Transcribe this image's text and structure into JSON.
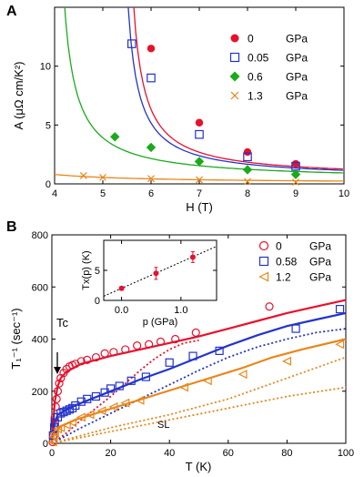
{
  "chart_data": [
    {
      "panel": "A",
      "type": "scatter",
      "xlabel": "H (T)",
      "ylabel": "A (μΩ cm/K²)",
      "xlim": [
        4,
        10
      ],
      "ylim": [
        0,
        15
      ],
      "xticks": [
        "4",
        "5",
        "6",
        "7",
        "8",
        "9",
        "10"
      ],
      "yticks": [
        "0",
        "5",
        "10"
      ],
      "series": [
        {
          "name": "0",
          "unit": "GPa",
          "color": "#e8112d",
          "marker": "filled-circle",
          "x": [
            6,
            7,
            8,
            9
          ],
          "y": [
            11.5,
            5.2,
            2.7,
            1.7
          ],
          "fit": {
            "Hc": 5.4,
            "a": 3.5,
            "b": 0.5
          }
        },
        {
          "name": "0.05",
          "unit": "GPa",
          "color": "#2233cc",
          "marker": "open-square",
          "x": [
            5.6,
            6,
            7,
            8,
            9
          ],
          "y": [
            11.9,
            9.0,
            4.2,
            2.3,
            1.5
          ],
          "fit": {
            "Hc": 5.3,
            "a": 3.3,
            "b": 0.45
          }
        },
        {
          "name": "0.6",
          "unit": "GPa",
          "color": "#1aaa1a",
          "marker": "filled-diamond",
          "x": [
            5.25,
            6,
            7,
            8,
            9
          ],
          "y": [
            4.0,
            3.1,
            1.9,
            1.2,
            0.8
          ],
          "fit": {
            "Hc": 3.95,
            "a": 3.8,
            "b": 0.3
          }
        },
        {
          "name": "1.3",
          "unit": "GPa",
          "color": "#e8861a",
          "marker": "x",
          "x": [
            4.6,
            5,
            6,
            7,
            8,
            9
          ],
          "y": [
            0.7,
            0.55,
            0.45,
            0.35,
            0.2,
            0.15
          ],
          "fit": {
            "Hc": 2.0,
            "a": 1.5,
            "b": 0.05
          }
        }
      ]
    },
    {
      "panel": "B",
      "type": "scatter",
      "xlabel": "T (K)",
      "ylabel": "T₁⁻¹ (sec⁻¹)",
      "xlim": [
        0,
        100
      ],
      "ylim": [
        0,
        800
      ],
      "xticks": [
        "0",
        "20",
        "40",
        "60",
        "80",
        "100"
      ],
      "yticks": [
        "0",
        "200",
        "400",
        "600",
        "800"
      ],
      "annotations": {
        "tc": "Tc",
        "sl": "SL"
      },
      "series": [
        {
          "name": "0",
          "unit": "GPa",
          "color": "#e8112d",
          "marker": "open-circle",
          "x": [
            0.3,
            0.5,
            0.8,
            1,
            1.3,
            1.6,
            2,
            2.5,
            3,
            4,
            5,
            6,
            7,
            8,
            10,
            12,
            15,
            18,
            21,
            25,
            29,
            33,
            37,
            42,
            49,
            74
          ],
          "y": [
            5,
            30,
            70,
            100,
            140,
            170,
            200,
            230,
            250,
            270,
            285,
            295,
            300,
            305,
            315,
            320,
            330,
            345,
            350,
            360,
            375,
            380,
            390,
            400,
            425,
            525
          ],
          "line": [
            [
              0,
              10
            ],
            [
              0.5,
              80
            ],
            [
              1,
              160
            ],
            [
              2,
              220
            ],
            [
              3,
              250
            ],
            [
              5,
              275
            ],
            [
              10,
              305
            ],
            [
              20,
              335
            ],
            [
              30,
              360
            ],
            [
              40,
              385
            ],
            [
              50,
              410
            ],
            [
              60,
              440
            ],
            [
              70,
              470
            ],
            [
              80,
              500
            ],
            [
              90,
              525
            ],
            [
              100,
              550
            ]
          ],
          "dotted": [
            [
              0,
              0
            ],
            [
              5,
              40
            ],
            [
              10,
              90
            ],
            [
              15,
              135
            ],
            [
              20,
              180
            ],
            [
              25,
              230
            ],
            [
              30,
              280
            ],
            [
              35,
              325
            ],
            [
              40,
              360
            ],
            [
              45,
              385
            ],
            [
              50,
              395
            ]
          ]
        },
        {
          "name": "0.58",
          "unit": "GPa",
          "color": "#2233cc",
          "marker": "open-square",
          "x": [
            0.4,
            0.8,
            1,
            2,
            3,
            4,
            5,
            6,
            7,
            8,
            10,
            12,
            15,
            18,
            20,
            23,
            27,
            32,
            40,
            48,
            57,
            83,
            98
          ],
          "y": [
            30,
            60,
            80,
            100,
            115,
            120,
            125,
            130,
            135,
            145,
            160,
            170,
            180,
            195,
            210,
            220,
            240,
            255,
            310,
            335,
            355,
            440,
            515
          ],
          "line": [
            [
              0,
              10
            ],
            [
              1,
              80
            ],
            [
              2,
              110
            ],
            [
              5,
              130
            ],
            [
              10,
              155
            ],
            [
              20,
              200
            ],
            [
              30,
              245
            ],
            [
              40,
              285
            ],
            [
              50,
              330
            ],
            [
              60,
              375
            ],
            [
              70,
              415
            ],
            [
              80,
              450
            ],
            [
              90,
              475
            ],
            [
              100,
              500
            ]
          ],
          "dotted": [
            [
              0,
              0
            ],
            [
              10,
              60
            ],
            [
              20,
              115
            ],
            [
              30,
              170
            ],
            [
              40,
              225
            ],
            [
              50,
              280
            ],
            [
              60,
              330
            ],
            [
              70,
              370
            ],
            [
              80,
              400
            ],
            [
              90,
              425
            ],
            [
              100,
              440
            ]
          ]
        },
        {
          "name": "1.2",
          "unit": "GPa",
          "color": "#e8861a",
          "marker": "open-triangle",
          "x": [
            0.3,
            0.6,
            1,
            2,
            3,
            5,
            7,
            10,
            13,
            17,
            21,
            25,
            30,
            45,
            53,
            65,
            80,
            98
          ],
          "y": [
            5,
            25,
            40,
            55,
            60,
            70,
            80,
            100,
            110,
            125,
            140,
            155,
            165,
            215,
            240,
            265,
            315,
            380
          ],
          "line": [
            [
              0,
              5
            ],
            [
              1,
              40
            ],
            [
              3,
              65
            ],
            [
              8,
              90
            ],
            [
              15,
              115
            ],
            [
              25,
              150
            ],
            [
              35,
              185
            ],
            [
              45,
              220
            ],
            [
              55,
              255
            ],
            [
              65,
              290
            ],
            [
              75,
              330
            ],
            [
              85,
              360
            ],
            [
              100,
              400
            ]
          ],
          "dotted": [
            [
              0,
              0
            ],
            [
              20,
              45
            ],
            [
              40,
              90
            ],
            [
              60,
              135
            ],
            [
              80,
              180
            ],
            [
              100,
              215
            ]
          ],
          "dotted2": [
            [
              0,
              0
            ],
            [
              10,
              30
            ],
            [
              20,
              60
            ],
            [
              40,
              110
            ],
            [
              60,
              170
            ],
            [
              80,
              250
            ],
            [
              100,
              330
            ]
          ]
        }
      ]
    },
    {
      "panel": "B-inset",
      "type": "scatter",
      "xlabel": "p (GPa)",
      "ylabel": "Tx(p) (K)",
      "xlim": [
        -0.3,
        1.6
      ],
      "ylim": [
        0,
        10
      ],
      "xticks": [
        "0.0",
        "1.0"
      ],
      "yticks": [
        "0",
        "5"
      ],
      "series": [
        {
          "name": "Tx",
          "color": "#e8112d",
          "marker": "filled-circle",
          "x": [
            0,
            0.58,
            1.2
          ],
          "y": [
            2.0,
            4.5,
            7.2
          ],
          "err": [
            0.3,
            1.0,
            0.9
          ],
          "fit": [
            [
              -0.3,
              0.7
            ],
            [
              1.6,
              9.0
            ]
          ]
        }
      ]
    }
  ]
}
